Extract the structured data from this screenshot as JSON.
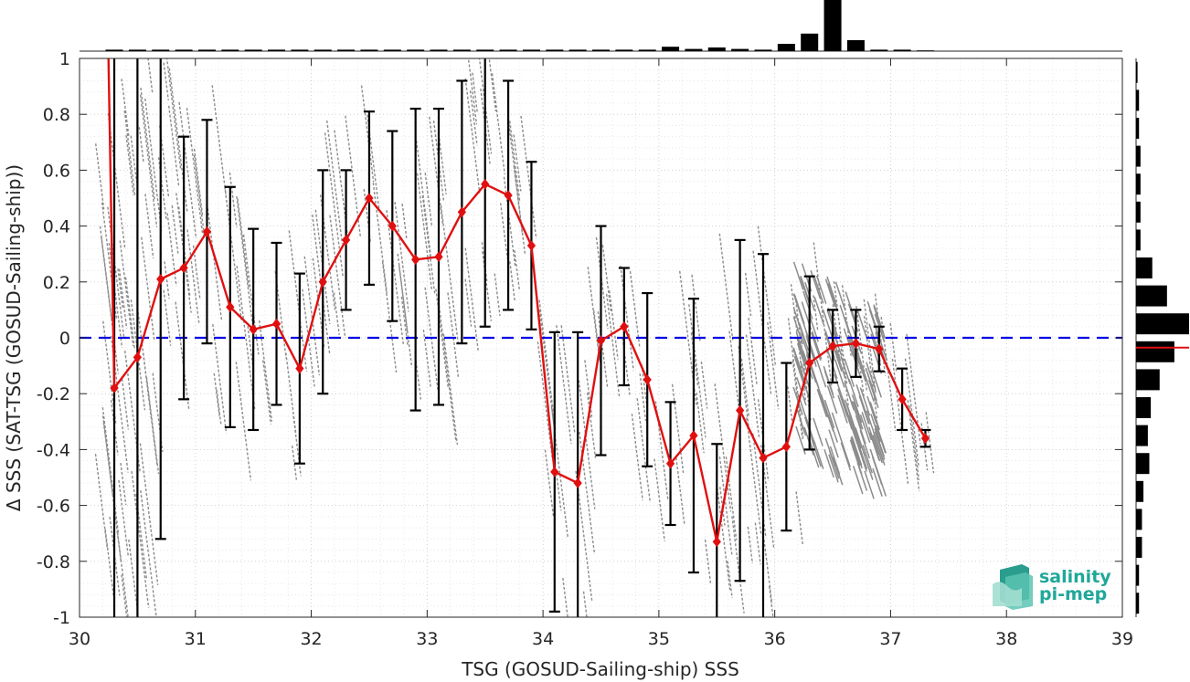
{
  "chart_data": {
    "type": "scatter",
    "xlabel": "TSG (GOSUD-Sailing-ship) SSS",
    "ylabel": "Δ SSS (SAT-TSG (GOSUD-Sailing-ship))",
    "xlim": [
      30,
      39
    ],
    "ylim": [
      -1,
      1
    ],
    "x_ticks": [
      "30",
      "31",
      "32",
      "33",
      "34",
      "35",
      "36",
      "37",
      "38",
      "39"
    ],
    "y_ticks": [
      "-1",
      "-0.8",
      "-0.6",
      "-0.4",
      "-0.2",
      "0",
      "0.2",
      "0.4",
      "0.6",
      "0.8",
      "1"
    ],
    "grid": true,
    "reference_line": {
      "y": 0,
      "style": "dashed",
      "color": "#0000e6"
    },
    "colors": {
      "mean_line": "#e01010",
      "error_bar": "#000000",
      "scatter": "#8c8c8c",
      "histogram": "#000000"
    },
    "binned_mean": {
      "x": [
        30.3,
        30.5,
        30.7,
        30.9,
        31.1,
        31.3,
        31.5,
        31.7,
        31.9,
        32.1,
        32.3,
        32.5,
        32.7,
        32.9,
        33.1,
        33.3,
        33.5,
        33.7,
        33.9,
        34.1,
        34.3,
        34.5,
        34.7,
        34.9,
        35.1,
        35.3,
        35.5,
        35.7,
        35.9,
        36.1,
        36.3,
        36.5,
        36.7,
        36.9,
        37.1,
        37.3
      ],
      "mean": [
        -0.18,
        -0.07,
        0.21,
        0.25,
        0.38,
        0.11,
        0.03,
        0.05,
        -0.11,
        0.2,
        0.35,
        0.5,
        0.4,
        0.28,
        0.29,
        0.45,
        0.55,
        0.51,
        0.33,
        -0.48,
        -0.52,
        -0.01,
        0.04,
        -0.15,
        -0.45,
        -0.35,
        -0.73,
        -0.26,
        -0.43,
        -0.39,
        -0.09,
        -0.03,
        -0.02,
        -0.04,
        -0.22,
        -0.36
      ],
      "std": [
        1.5,
        1.5,
        0.93,
        0.47,
        0.4,
        0.43,
        0.36,
        0.29,
        0.34,
        0.4,
        0.25,
        0.31,
        0.34,
        0.54,
        0.53,
        0.47,
        0.51,
        0.41,
        0.3,
        0.5,
        0.54,
        0.41,
        0.21,
        0.31,
        0.22,
        0.49,
        0.35,
        0.61,
        0.73,
        0.3,
        0.31,
        0.13,
        0.12,
        0.08,
        0.11,
        0.03
      ]
    },
    "histogram_x": {
      "x": [
        30.3,
        30.5,
        30.7,
        30.9,
        31.1,
        31.3,
        31.5,
        31.7,
        31.9,
        32.1,
        32.3,
        32.5,
        32.7,
        32.9,
        33.1,
        33.3,
        33.5,
        33.7,
        33.9,
        34.1,
        34.3,
        34.5,
        34.7,
        34.9,
        35.1,
        35.3,
        35.5,
        35.7,
        35.9,
        36.1,
        36.3,
        36.5,
        36.7,
        36.9,
        37.1,
        37.3
      ],
      "counts": [
        2,
        2,
        2,
        2,
        2,
        2,
        2,
        2,
        2,
        2,
        2,
        2,
        2,
        2,
        2,
        2,
        2,
        2,
        2,
        2,
        2,
        2,
        2,
        2,
        6,
        3,
        5,
        3,
        2,
        10,
        24,
        70,
        15,
        2,
        2,
        1
      ]
    },
    "histogram_y": {
      "y": [
        -0.95,
        -0.85,
        -0.75,
        -0.65,
        -0.55,
        -0.45,
        -0.35,
        -0.25,
        -0.15,
        -0.05,
        0.05,
        0.15,
        0.25,
        0.35,
        0.45,
        0.55,
        0.65,
        0.75,
        0.85,
        0.95
      ],
      "counts": [
        2,
        2,
        4,
        4,
        5,
        9,
        8,
        10,
        16,
        26,
        36,
        21,
        11,
        3,
        3,
        3,
        3,
        2,
        2,
        1
      ]
    },
    "logo": {
      "line1": "salinity",
      "line2": "pi-mep"
    }
  }
}
